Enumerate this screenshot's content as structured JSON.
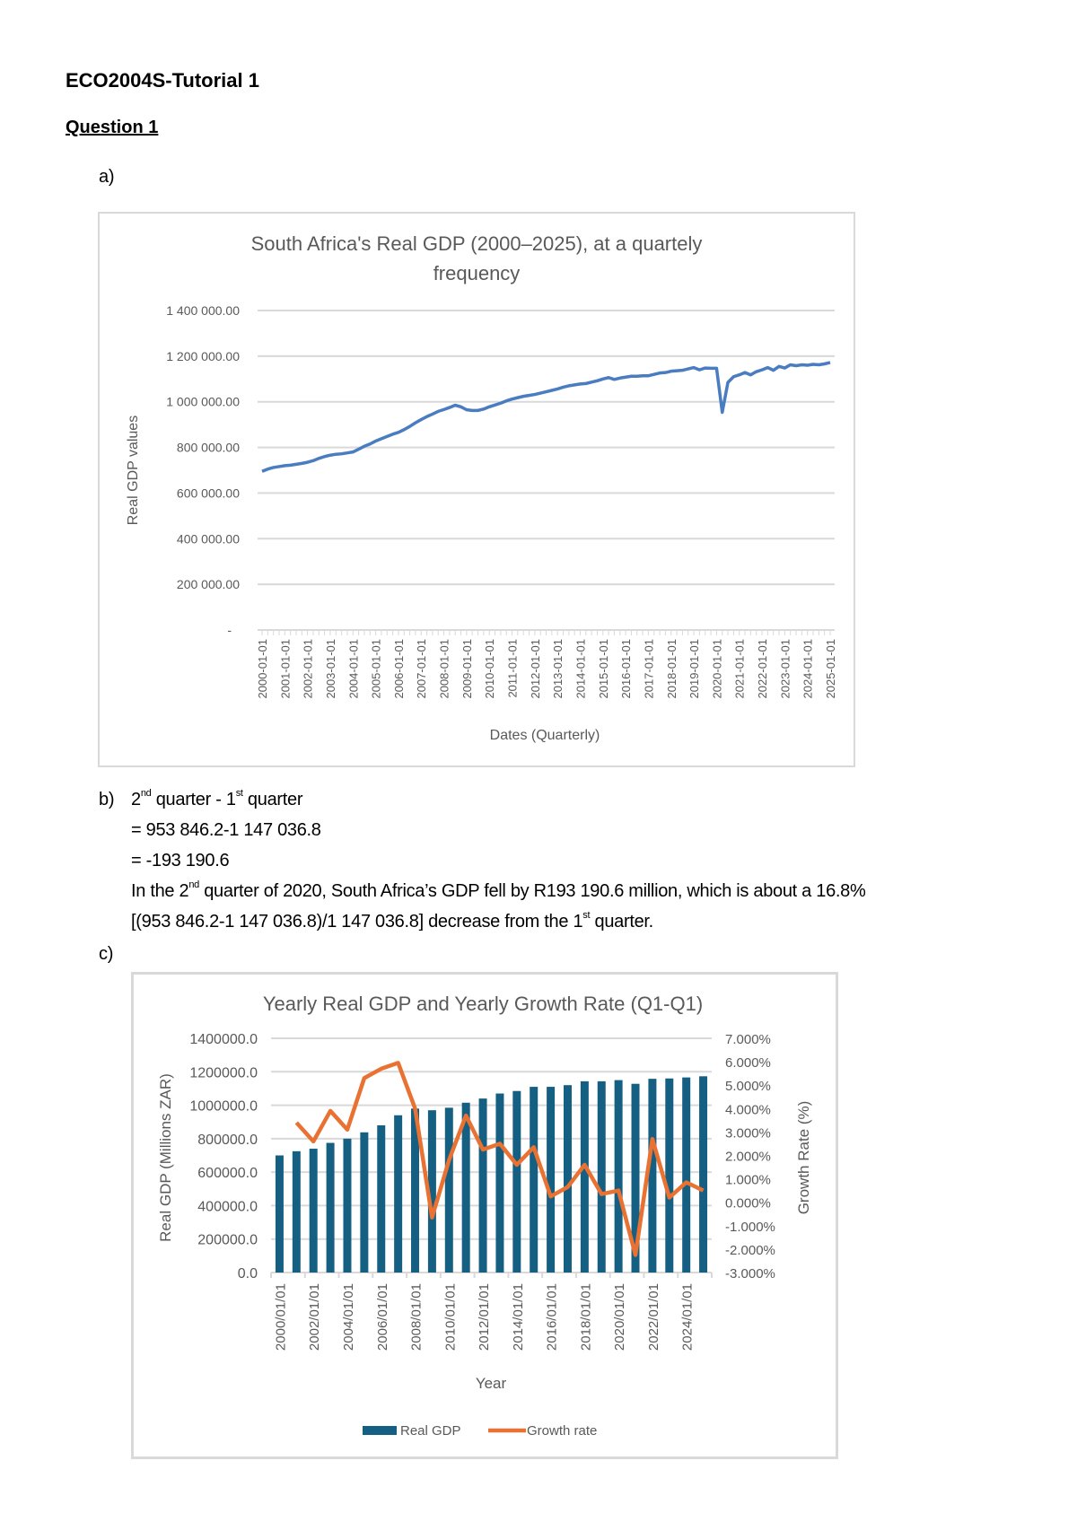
{
  "document": {
    "title": "ECO2004S-Tutorial 1",
    "question": "Question 1",
    "part_a": "a)",
    "part_b": {
      "label": "b)",
      "line1": [
        "2",
        "nd",
        " quarter - 1",
        "st",
        " quarter"
      ],
      "line2": "= 953 846.2-1 147 036.8",
      "line3": "= -193 190.6",
      "line4": [
        "In the 2",
        "nd",
        " quarter of 2020, South Africa’s GDP fell by R193 190.6 million, which is about a 16.8%"
      ],
      "line5": [
        "[(953 846.2-1 147 036.8)/1 147 036.8] decrease from the 1",
        "st",
        " quarter."
      ]
    },
    "part_c": "c)"
  },
  "chart_data": [
    {
      "type": "line",
      "title": "South Africa's Real GDP (2000–2025), at a quartely frequency",
      "title_lines": [
        "South Africa's Real GDP (2000–2025), at a quartely",
        "frequency"
      ],
      "xlabel": "Dates (Quarterly)",
      "ylabel": "Real GDP values",
      "ylim": [
        0,
        1400000
      ],
      "y_ticks": [
        0,
        200000,
        400000,
        600000,
        800000,
        1000000,
        1200000,
        1400000
      ],
      "y_tick_labels": [
        "-",
        "200 000.00",
        "400 000.00",
        "600 000.00",
        "800 000.00",
        "1 000 000.00",
        "1 200 000.00",
        "1 400 000.00"
      ],
      "x_tick_labels": [
        "2000-01-01",
        "2001-01-01",
        "2002-01-01",
        "2003-01-01",
        "2004-01-01",
        "2005-01-01",
        "2006-01-01",
        "2007-01-01",
        "2008-01-01",
        "2009-01-01",
        "2010-01-01",
        "2011-01-01",
        "2012-01-01",
        "2013-01-01",
        "2014-01-01",
        "2015-01-01",
        "2016-01-01",
        "2017-01-01",
        "2018-01-01",
        "2019-01-01",
        "2020-01-01",
        "2021-01-01",
        "2022-01-01",
        "2023-01-01",
        "2024-01-01",
        "2025-01-01"
      ],
      "x_range": [
        "2000-01-01",
        "2025-01-01"
      ],
      "grid": true,
      "legend": "none",
      "color": "#4a7cc1",
      "series": [
        {
          "values": [
            695000,
            705000,
            712000,
            716000,
            720000,
            722000,
            726000,
            730000,
            735000,
            742000,
            752000,
            760000,
            766000,
            770000,
            772000,
            776000,
            780000,
            792000,
            805000,
            815000,
            828000,
            838000,
            848000,
            858000,
            866000,
            878000,
            892000,
            908000,
            922000,
            935000,
            946000,
            958000,
            966000,
            975000,
            985000,
            978000,
            965000,
            962000,
            962000,
            968000,
            978000,
            986000,
            994000,
            1004000,
            1012000,
            1018000,
            1024000,
            1028000,
            1032000,
            1038000,
            1044000,
            1050000,
            1056000,
            1064000,
            1070000,
            1074000,
            1078000,
            1080000,
            1086000,
            1092000,
            1100000,
            1106000,
            1098000,
            1104000,
            1108000,
            1112000,
            1112000,
            1114000,
            1114000,
            1120000,
            1126000,
            1128000,
            1134000,
            1136000,
            1138000,
            1144000,
            1150000,
            1140000,
            1148000,
            1147000,
            1147036.8,
            953846.2,
            1085000,
            1110000,
            1118000,
            1128000,
            1118000,
            1132000,
            1140000,
            1150000,
            1138000,
            1155000,
            1148000,
            1162000,
            1158000,
            1162000,
            1160000,
            1164000,
            1162000,
            1166000,
            1172000
          ]
        }
      ]
    },
    {
      "type": "bar+line",
      "title": "Yearly Real GDP and Yearly Growth Rate (Q1-Q1)",
      "xlabel": "Year",
      "ylabel": "Real GDP (Millions ZAR)",
      "y2label": "Growth Rate (%)",
      "categories": [
        "2000/01/01",
        "2001/01/01",
        "2002/01/01",
        "2003/01/01",
        "2004/01/01",
        "2005/01/01",
        "2006/01/01",
        "2007/01/01",
        "2008/01/01",
        "2009/01/01",
        "2010/01/01",
        "2011/01/01",
        "2012/01/01",
        "2013/01/01",
        "2014/01/01",
        "2015/01/01",
        "2016/01/01",
        "2017/01/01",
        "2018/01/01",
        "2019/01/01",
        "2020/01/01",
        "2021/01/01",
        "2022/01/01",
        "2023/01/01",
        "2024/01/01",
        "2025/01/01"
      ],
      "x_tick_labels": [
        "2000/01/01",
        "2002/01/01",
        "2004/01/01",
        "2006/01/01",
        "2008/01/01",
        "2010/01/01",
        "2012/01/01",
        "2014/01/01",
        "2016/01/01",
        "2018/01/01",
        "2020/01/01",
        "2022/01/01",
        "2024/01/01"
      ],
      "ylim": [
        0,
        1400000
      ],
      "y_tick_labels": [
        "0.0",
        "200000.0",
        "400000.0",
        "600000.0",
        "800000.0",
        "1000000.0",
        "1200000.0",
        "1400000.0"
      ],
      "y2lim": [
        -3,
        7
      ],
      "y2_tick_labels": [
        "-3.000%",
        "-2.000%",
        "-1.000%",
        "0.000%",
        "1.000%",
        "2.000%",
        "3.000%",
        "4.000%",
        "5.000%",
        "6.000%",
        "7.000%"
      ],
      "grid": true,
      "legend": "bottom",
      "series": [
        {
          "name": "Real GDP",
          "kind": "bar",
          "axis": "left",
          "color": "#156082",
          "values": [
            700000,
            725000,
            740000,
            775000,
            800000,
            838000,
            880000,
            940000,
            980000,
            970000,
            985000,
            1015000,
            1040000,
            1070000,
            1085000,
            1110000,
            1110000,
            1120000,
            1143000,
            1143000,
            1150000,
            1128000,
            1158000,
            1160000,
            1166000,
            1173000
          ]
        },
        {
          "name": "Growth rate",
          "kind": "line",
          "axis": "right",
          "color": "#e97132",
          "values": [
            null,
            3.4,
            2.6,
            3.9,
            3.1,
            5.3,
            5.7,
            5.95,
            4.0,
            -0.65,
            1.8,
            3.7,
            2.25,
            2.5,
            1.6,
            2.35,
            0.25,
            0.65,
            1.6,
            0.35,
            0.5,
            -2.25,
            2.7,
            0.2,
            0.85,
            0.5
          ]
        }
      ]
    }
  ]
}
